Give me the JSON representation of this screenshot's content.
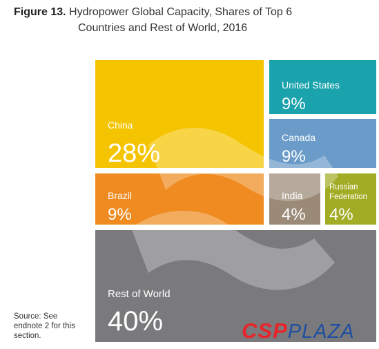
{
  "title": {
    "figure": "Figure 13.",
    "line1": "Hydropower Global Capacity, Shares of Top 6",
    "line2": "Countries and Rest of World, 2016"
  },
  "chart_data": {
    "type": "treemap",
    "title": "Figure 13. Hydropower Global Capacity, Shares of Top 6 Countries and Rest of World, 2016",
    "unit": "%",
    "items": [
      {
        "name": "China",
        "value": 28,
        "label": "28%",
        "color": "#f5c400"
      },
      {
        "name": "United States",
        "value": 9,
        "label": "9%",
        "color": "#1aa3ad"
      },
      {
        "name": "Canada",
        "value": 9,
        "label": "9%",
        "color": "#6b9cc9"
      },
      {
        "name": "Brazil",
        "value": 9,
        "label": "9%",
        "color": "#ef8b20"
      },
      {
        "name": "India",
        "value": 4,
        "label": "4%",
        "color": "#9a8a77"
      },
      {
        "name": "Russian Federation",
        "value": 4,
        "label": "4%",
        "color": "#a2ad25"
      },
      {
        "name": "Rest of World",
        "value": 40,
        "label": "40%",
        "color": "#7a7a7d"
      }
    ]
  },
  "source": "Source: See endnote 2 for this section.",
  "watermark": {
    "part1": "CSP",
    "part2": "PLAZA"
  }
}
